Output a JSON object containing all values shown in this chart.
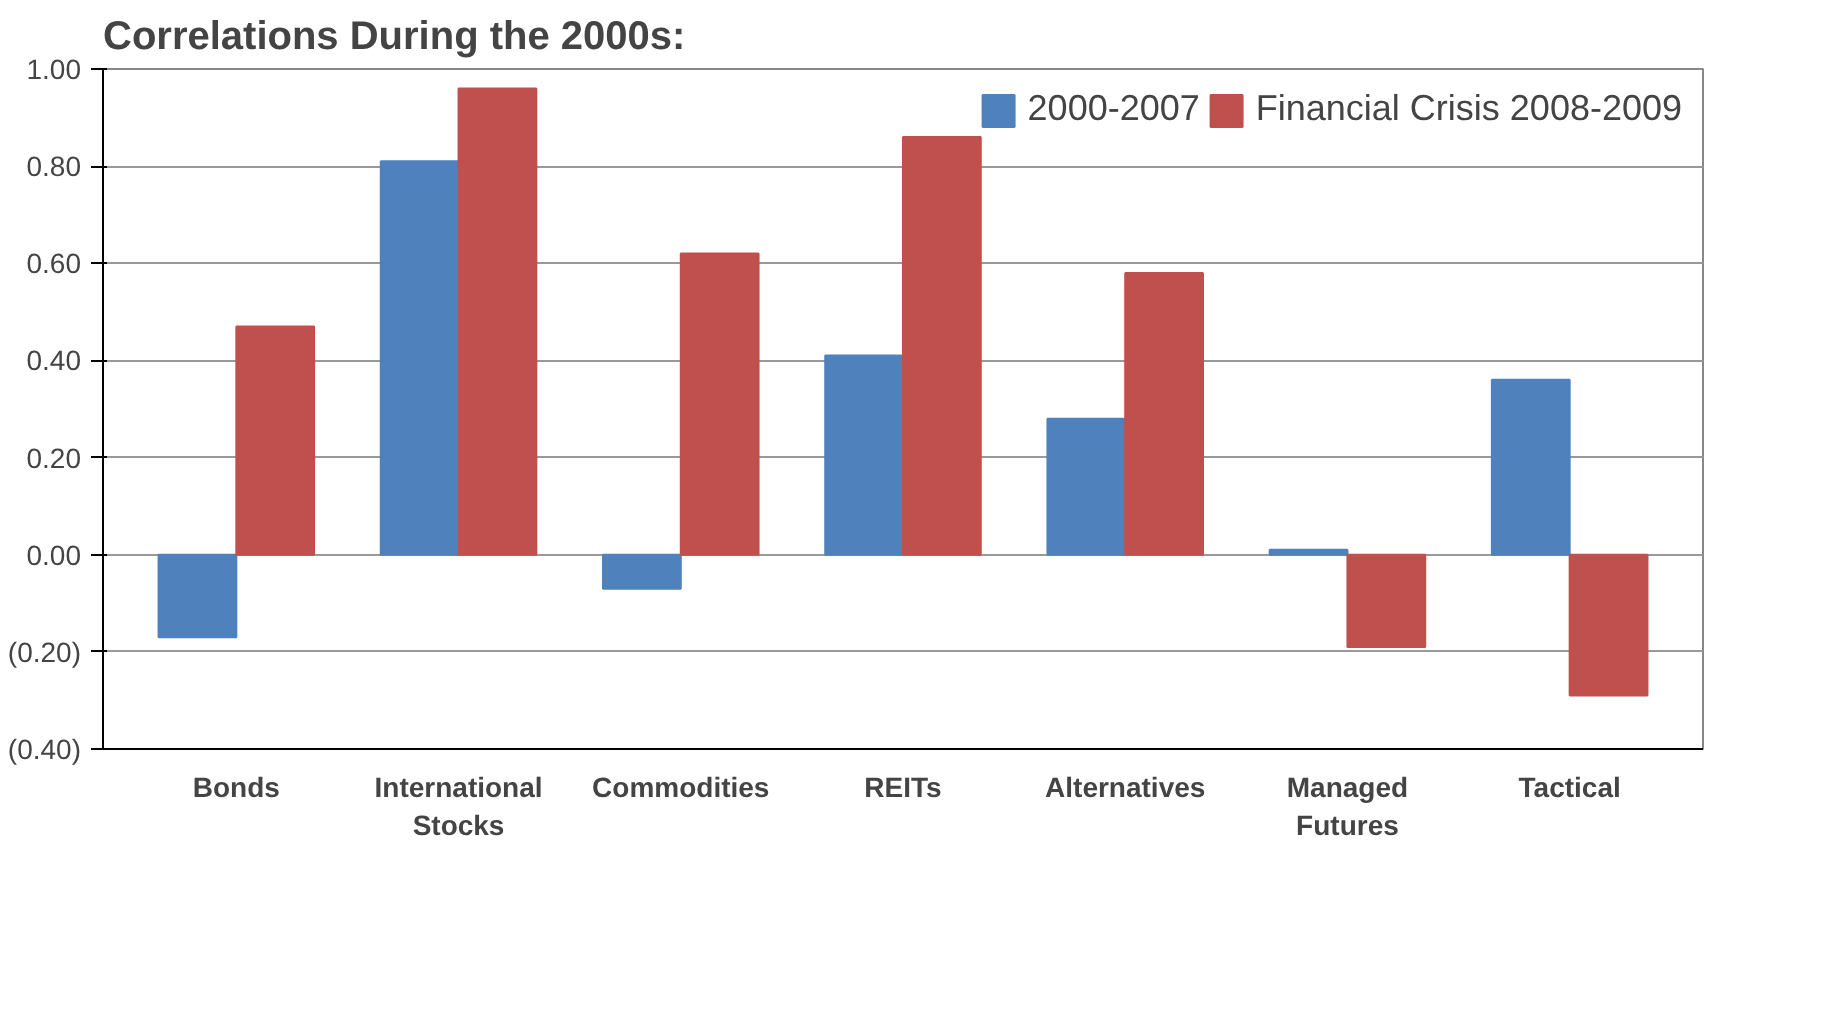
{
  "chart_data": {
    "type": "bar",
    "title": "Correlations During the 2000s:",
    "categories": [
      "Bonds",
      "International Stocks",
      "Commodities",
      "REITs",
      "Alternatives",
      "Managed Futures",
      "Tactical"
    ],
    "series": [
      {
        "name": "2000-2007",
        "color": "#4f81bd",
        "values": [
          -0.17,
          0.81,
          -0.07,
          0.41,
          0.28,
          0.01,
          0.36
        ]
      },
      {
        "name": "Financial Crisis 2008-2009",
        "color": "#c0504d",
        "values": [
          0.47,
          0.96,
          0.62,
          0.86,
          0.58,
          -0.19,
          -0.29
        ]
      }
    ],
    "ylim": [
      -0.4,
      1.0
    ],
    "yticks": [
      {
        "value": -0.4,
        "label": "(0.40)"
      },
      {
        "value": -0.2,
        "label": "(0.20)"
      },
      {
        "value": 0,
        "label": "0.00"
      },
      {
        "value": 0.2,
        "label": "0.20"
      },
      {
        "value": 0.4,
        "label": "0.40"
      },
      {
        "value": 0.6,
        "label": "0.60"
      },
      {
        "value": 0.8,
        "label": "0.80"
      },
      {
        "value": 1.0,
        "label": "1.00"
      }
    ],
    "grid": "y",
    "legend": "top"
  }
}
